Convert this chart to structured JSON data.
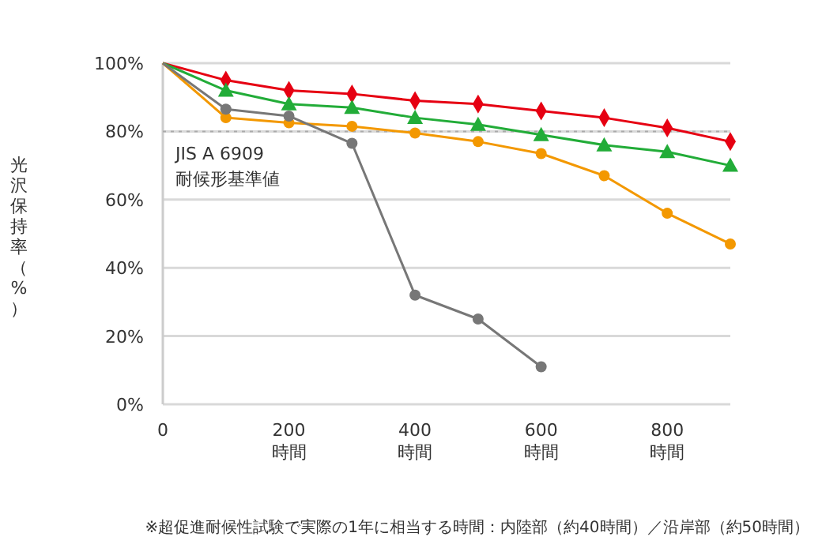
{
  "chart_data": {
    "type": "line",
    "ylabel": "光沢保持率（%）",
    "x": [
      0,
      100,
      200,
      300,
      400,
      500,
      600,
      700,
      800,
      900
    ],
    "xlim": [
      0,
      900
    ],
    "xticks": [
      0,
      {
        "value": 200,
        "label": "200\n時間"
      },
      {
        "value": 400,
        "label": "400\n時間"
      },
      {
        "value": 600,
        "label": "600\n時間"
      },
      {
        "value": 800,
        "label": "800\n時間"
      }
    ],
    "ylim": [
      0,
      100
    ],
    "yticks": [
      {
        "value": 0,
        "label": "0%"
      },
      {
        "value": 20,
        "label": "20%"
      },
      {
        "value": 40,
        "label": "40%"
      },
      {
        "value": 60,
        "label": "60%"
      },
      {
        "value": 80,
        "label": "80%"
      },
      {
        "value": 100,
        "label": "100%"
      }
    ],
    "grid": "y",
    "series": [
      {
        "color": "#e60012",
        "marker": "diamond",
        "values": [
          100,
          95,
          92,
          91,
          89,
          88,
          86,
          84,
          81,
          77
        ]
      },
      {
        "color": "#22ac38",
        "marker": "triangle",
        "values": [
          100,
          92,
          88,
          87,
          84,
          82,
          79,
          76,
          74,
          70
        ]
      },
      {
        "color": "#f39800",
        "marker": "circle",
        "values": [
          100,
          84,
          82.5,
          81.5,
          79.5,
          77,
          73.5,
          67,
          56,
          47
        ]
      },
      {
        "color": "#777777",
        "marker": "circle",
        "values": [
          100,
          86.5,
          84.5,
          76.5,
          32,
          25,
          11,
          null,
          null,
          null
        ]
      }
    ],
    "ref_lines": [
      {
        "axis": "y",
        "value": 80,
        "label": "JIS A 6909\n耐候形基準値",
        "line_style": "dotted",
        "color": "#aaaaaa"
      }
    ],
    "annotations": [
      "※超促進耐候性試験で実際の1年に相当する時間：内陸部（約40時間）／沿岸部（約50時間）"
    ]
  }
}
